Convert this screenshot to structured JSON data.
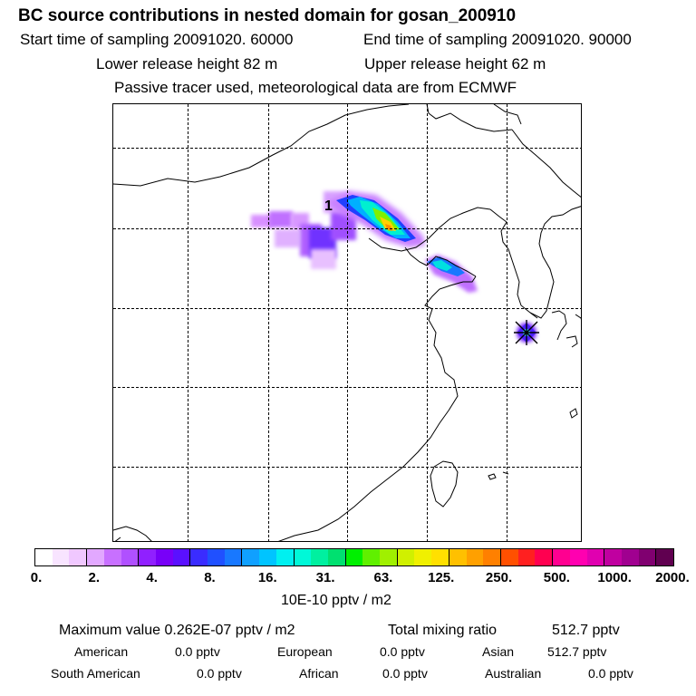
{
  "header": {
    "title": "BC  source contributions in nested domain for gosan_200910",
    "start_sampling": "Start time of sampling 20091020. 60000",
    "end_sampling": "End time of sampling 20091020. 90000",
    "lower_release": "Lower release height   82 m",
    "upper_release": "Upper release height   62 m",
    "tracer_note": "Passive tracer used, meteorological data are from ECMWF"
  },
  "map": {
    "contour_label": "1",
    "receptor_marker": "gosan-station-marker"
  },
  "colorbar": {
    "ticks": [
      "0.",
      "2.",
      "4.",
      "8.",
      "16.",
      "31.",
      "63.",
      "125.",
      "250.",
      "500.",
      "1000.",
      "2000."
    ],
    "unit": "10E-10 pptv / m2",
    "colors": [
      "#ffffff",
      "#f8e4ff",
      "#f0c8ff",
      "#e2a8ff",
      "#c870ff",
      "#b050ff",
      "#9020ff",
      "#7800f8",
      "#5a10ff",
      "#3a2cff",
      "#2050ff",
      "#1878ff",
      "#10a0ff",
      "#00c4ff",
      "#00f0f0",
      "#00f8d8",
      "#00f0a0",
      "#00e070",
      "#00f000",
      "#60f000",
      "#a0f000",
      "#d0f000",
      "#f0f000",
      "#ffe000",
      "#ffc000",
      "#ffa000",
      "#ff8000",
      "#ff5000",
      "#ff2020",
      "#ff0050",
      "#ff0090",
      "#ff00b0",
      "#e000b0",
      "#c000a0",
      "#a00090",
      "#800070",
      "#600050"
    ]
  },
  "stats": {
    "maximum_value": "Maximum value  0.262E-07 pptv / m2",
    "total_mixing": "Total mixing ratio",
    "total_mixing_value": "512.7 pptv",
    "american": "American",
    "american_value": "0.0 pptv",
    "european": "European",
    "european_value": "0.0 pptv",
    "asian": "Asian",
    "asian_value": "512.7 pptv",
    "south_american": "South American",
    "south_american_value": "0.0 pptv",
    "african": "African",
    "african_value": "0.0 pptv",
    "australian": "Australian",
    "australian_value": "0.0 pptv"
  }
}
